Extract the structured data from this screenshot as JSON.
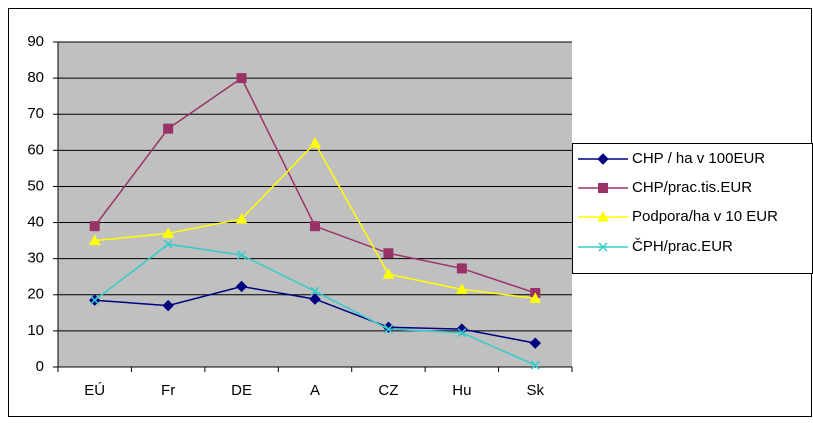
{
  "chart_data": {
    "type": "line",
    "categories": [
      "EÚ",
      "Fr",
      "DE",
      "A",
      "CZ",
      "Hu",
      "Sk"
    ],
    "series": [
      {
        "name": "CHP / ha v 100EUR",
        "color": "#000080",
        "marker": "diamond",
        "values": [
          18.5,
          17,
          22.3,
          18.8,
          11,
          10.5,
          6.6
        ]
      },
      {
        "name": "CHP/prac.tis.EUR",
        "color": "#993366",
        "marker": "square",
        "values": [
          39,
          66,
          80,
          39,
          31.5,
          27.3,
          20.5
        ]
      },
      {
        "name": "Podpora/ha v 10 EUR",
        "color": "#ffff00",
        "marker": "triangle",
        "values": [
          35,
          37,
          41,
          62,
          25.7,
          21.5,
          19
        ]
      },
      {
        "name": "ČPH/prac.EUR",
        "color": "#33cccc",
        "marker": "x",
        "values": [
          18.5,
          34,
          31,
          21,
          10.5,
          9.5,
          0.5
        ]
      }
    ],
    "ylim": [
      0,
      90
    ],
    "yticks": [
      0,
      10,
      20,
      30,
      40,
      50,
      60,
      70,
      80,
      90
    ],
    "grid": true,
    "legend": "right"
  }
}
